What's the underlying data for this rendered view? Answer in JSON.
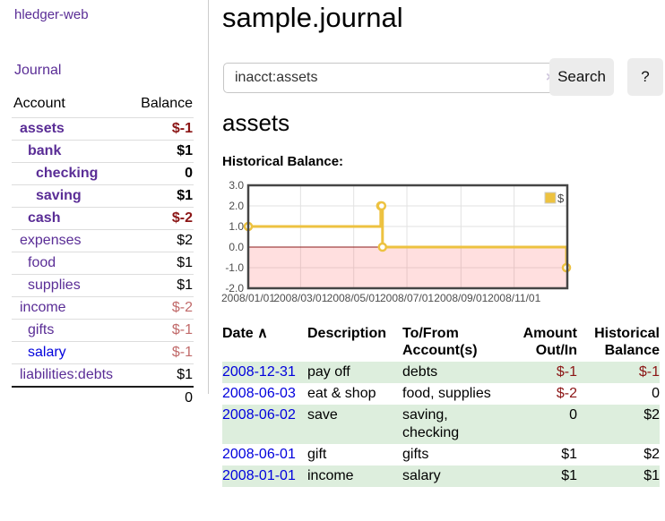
{
  "sidebar": {
    "brand": "hledger-web",
    "nav": {
      "journal": "Journal"
    },
    "table": {
      "headers": [
        "Account",
        "Balance"
      ],
      "rows": [
        {
          "name": "assets",
          "indent": 1,
          "bold": true,
          "balance": "$-1",
          "neg": "dark",
          "blue": false
        },
        {
          "name": "bank",
          "indent": 2,
          "bold": true,
          "balance": "$1",
          "neg": "none",
          "blue": false
        },
        {
          "name": "checking",
          "indent": 3,
          "bold": true,
          "balance": "0",
          "neg": "none",
          "blue": false
        },
        {
          "name": "saving",
          "indent": 3,
          "bold": true,
          "balance": "$1",
          "neg": "none",
          "blue": false
        },
        {
          "name": "cash",
          "indent": 2,
          "bold": true,
          "balance": "$-2",
          "neg": "dark",
          "blue": false
        },
        {
          "name": "expenses",
          "indent": 1,
          "bold": false,
          "balance": "$2",
          "neg": "none",
          "blue": false
        },
        {
          "name": "food",
          "indent": 2,
          "bold": false,
          "balance": "$1",
          "neg": "none",
          "blue": false
        },
        {
          "name": "supplies",
          "indent": 2,
          "bold": false,
          "balance": "$1",
          "neg": "none",
          "blue": false
        },
        {
          "name": "income",
          "indent": 1,
          "bold": false,
          "balance": "$-2",
          "neg": "light",
          "blue": false
        },
        {
          "name": "gifts",
          "indent": 2,
          "bold": false,
          "balance": "$-1",
          "neg": "light",
          "blue": false
        },
        {
          "name": "salary",
          "indent": 2,
          "bold": false,
          "balance": "$-1",
          "neg": "light",
          "blue": true
        },
        {
          "name": "liabilities:debts",
          "indent": 1,
          "bold": false,
          "balance": "$1",
          "neg": "none",
          "blue": false
        }
      ],
      "total": "0"
    }
  },
  "main": {
    "title": "sample.journal",
    "search": {
      "value": "inacct:assets",
      "clear_icon": "×",
      "button": "Search",
      "help": "?"
    },
    "account_heading": "assets",
    "chart_label": "Historical Balance:"
  },
  "chart_data": {
    "type": "line",
    "title": "Historical Balance",
    "step": true,
    "series": [
      {
        "name": "$",
        "color": "#edc240",
        "points": [
          [
            "2008-01-01",
            1
          ],
          [
            "2008-06-01",
            2
          ],
          [
            "2008-06-02",
            2
          ],
          [
            "2008-06-03",
            0
          ],
          [
            "2008-12-31",
            -1
          ]
        ]
      }
    ],
    "x_range": [
      "2008-01-01",
      "2009-01-01"
    ],
    "ylim": [
      -2,
      3
    ],
    "yticks": [
      "3.0",
      "2.0",
      "1.0",
      "0.0",
      "-1.0",
      "-2.0"
    ],
    "xticks": [
      "2008/01/01",
      "2008/03/01",
      "2008/05/01",
      "2008/07/01",
      "2008/09/01",
      "2008/11/01"
    ],
    "legend": "$",
    "legend_position": "top-right",
    "grid": true,
    "negative_region_color": "#fbdcdc",
    "zero_line_color": "#8b1a1a",
    "border_color": "#454545"
  },
  "register": {
    "headers": {
      "date": "Date",
      "sort_icon": "∧",
      "description": "Description",
      "account": "To/From\nAccount(s)",
      "amount": "Amount\nOut/In",
      "balance": "Historical\nBalance"
    },
    "rows": [
      {
        "date": "2008-12-31",
        "description": "pay off",
        "account": "debts",
        "amount": "$-1",
        "balance": "$-1",
        "amount_neg": true,
        "balance_neg": true
      },
      {
        "date": "2008-06-03",
        "description": "eat & shop",
        "account": "food, supplies",
        "amount": "$-2",
        "balance": "0",
        "amount_neg": true,
        "balance_neg": false
      },
      {
        "date": "2008-06-02",
        "description": "save",
        "account": "saving,\nchecking",
        "amount": "0",
        "balance": "$2",
        "amount_neg": false,
        "balance_neg": false
      },
      {
        "date": "2008-06-01",
        "description": "gift",
        "account": "gifts",
        "amount": "$1",
        "balance": "$2",
        "amount_neg": false,
        "balance_neg": false
      },
      {
        "date": "2008-01-01",
        "description": "income",
        "account": "salary",
        "amount": "$1",
        "balance": "$1",
        "amount_neg": false,
        "balance_neg": false
      }
    ]
  },
  "colors": {
    "link_purple": "#5a2d96",
    "link_blue": "#0000dd",
    "negative_dark": "#8b1515",
    "negative_light": "#c16a6a",
    "row_stripe_green": "#ddeedd",
    "chart_gold": "#edc240",
    "button_gray": "#ececec"
  }
}
